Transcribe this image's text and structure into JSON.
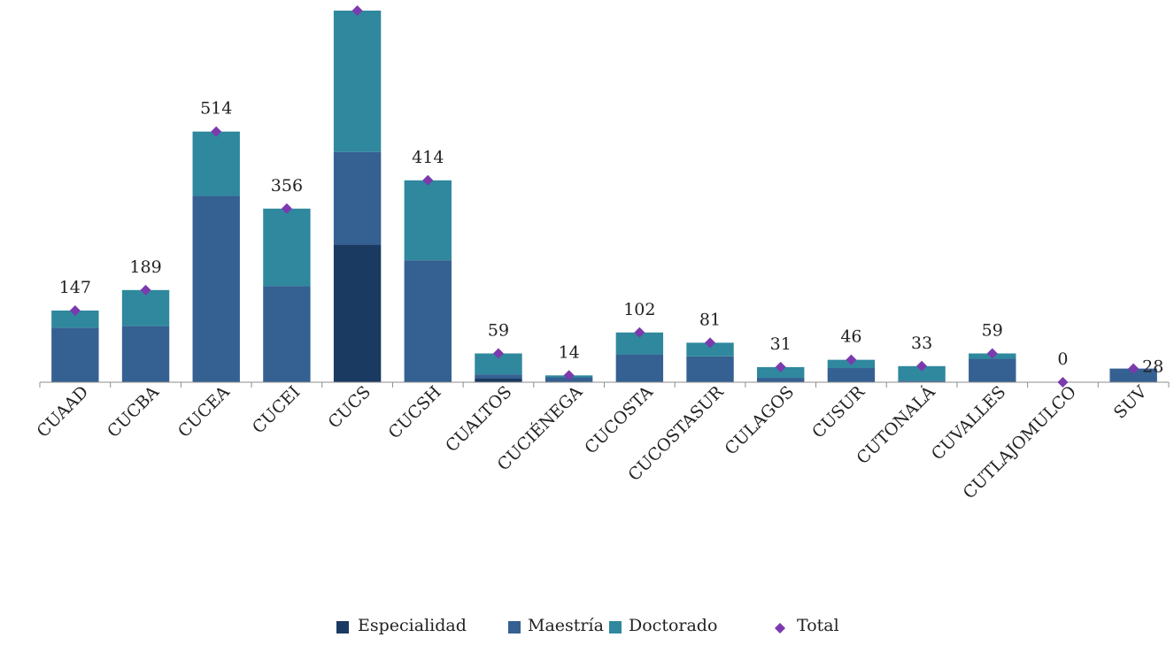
{
  "chart_data": {
    "type": "bar",
    "stacked": true,
    "categories": [
      "CUAAD",
      "CUCBA",
      "CUCEA",
      "CUCEI",
      "CUCS",
      "CUCSH",
      "CUALTOS",
      "CUCIÉNEGA",
      "CUCOSTA",
      "CUCOSTASUR",
      "CULAGOS",
      "CUSUR",
      "CUTONALÁ",
      "CUVALLES",
      "CUTLAJOMULCO",
      "SUV"
    ],
    "series": [
      {
        "name": "Especialidad",
        "color": "#1b3a61",
        "values": [
          0,
          0,
          0,
          0,
          282,
          0,
          8,
          0,
          0,
          0,
          0,
          0,
          0,
          0,
          0,
          0
        ]
      },
      {
        "name": "Maestría",
        "color": "#356092",
        "values": [
          112,
          115,
          382,
          197,
          190,
          250,
          8,
          10,
          57,
          53,
          9,
          29,
          3,
          48,
          0,
          28
        ]
      },
      {
        "name": "Doctorado",
        "color": "#2f889e",
        "values": [
          35,
          74,
          132,
          159,
          290,
          164,
          43,
          4,
          45,
          28,
          22,
          17,
          30,
          11,
          0,
          0
        ]
      }
    ],
    "total": {
      "name": "Total",
      "color": "#7c3aad",
      "values": [
        147,
        189,
        514,
        356,
        762,
        414,
        59,
        14,
        102,
        81,
        31,
        46,
        33,
        59,
        0,
        28
      ],
      "labels": [
        "147",
        "189",
        "514",
        "356",
        "",
        "414",
        "59",
        "14",
        "102",
        "81",
        "31",
        "46",
        "33",
        "59",
        "0",
        "28"
      ]
    },
    "ylim": [
      0,
      762
    ],
    "grid": false,
    "legend_position": "bottom"
  },
  "legend": [
    {
      "label": "Especialidad",
      "color": "#1b3a61",
      "marker": "square"
    },
    {
      "label": "Maestría",
      "color": "#356092",
      "marker": "square"
    },
    {
      "label": "Doctorado",
      "color": "#2f889e",
      "marker": "square"
    },
    {
      "label": "Total",
      "color": "#7c3aad",
      "marker": "diamond"
    }
  ]
}
